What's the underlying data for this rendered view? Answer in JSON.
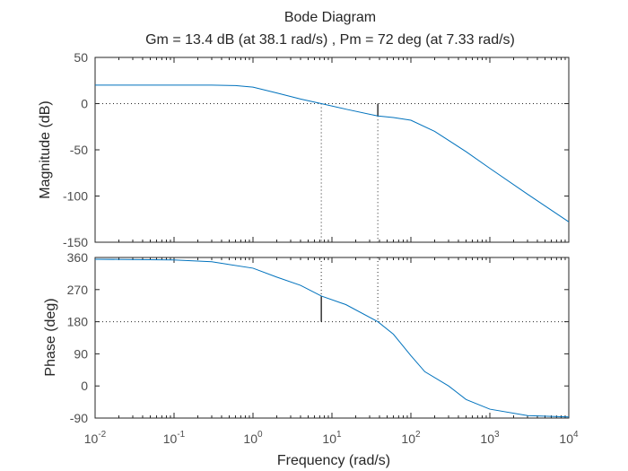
{
  "chart_data": {
    "type": "line",
    "title": "Bode Diagram",
    "subtitle": "Gm = 13.4 dB (at 38.1 rad/s) ,  Pm = 72 deg (at 7.33 rad/s)",
    "xlabel": "Frequency  (rad/s)",
    "xscale": "log",
    "xlim": [
      0.01,
      10000
    ],
    "x_ticks": [
      {
        "base": "10",
        "exp": "-2",
        "value": 0.01
      },
      {
        "base": "10",
        "exp": "-1",
        "value": 0.1
      },
      {
        "base": "10",
        "exp": "0",
        "value": 1
      },
      {
        "base": "10",
        "exp": "1",
        "value": 10
      },
      {
        "base": "10",
        "exp": "2",
        "value": 100
      },
      {
        "base": "10",
        "exp": "3",
        "value": 1000
      },
      {
        "base": "10",
        "exp": "4",
        "value": 10000
      }
    ],
    "line_color": "#0072bd",
    "magnitude": {
      "ylabel": "Magnitude (dB)",
      "ylim": [
        -150,
        50
      ],
      "ticks": [
        50,
        0,
        -50,
        -100,
        -150
      ],
      "x": [
        0.01,
        0.1,
        0.3,
        0.6,
        1,
        2,
        4,
        7.33,
        15,
        38.1,
        60,
        100,
        200,
        500,
        1000,
        3000,
        10000
      ],
      "y": [
        20,
        20,
        20,
        19.5,
        17.8,
        11.5,
        5,
        0,
        -6,
        -13.4,
        -15,
        -18,
        -30,
        -52,
        -70,
        -98,
        -128
      ]
    },
    "phase": {
      "ylabel": "Phase (deg)",
      "ylim": [
        -90,
        360
      ],
      "ticks": [
        360,
        270,
        180,
        90,
        0,
        -90
      ],
      "x": [
        0.01,
        0.1,
        0.3,
        1,
        2,
        4,
        7.33,
        15,
        38.1,
        60,
        100,
        150,
        300,
        500,
        1000,
        3000,
        10000
      ],
      "y": [
        355,
        353,
        348,
        330,
        305,
        282,
        252,
        228,
        180,
        145,
        85,
        40,
        0,
        -38,
        -65,
        -83,
        -87
      ]
    },
    "margins": {
      "gm_db": 13.4,
      "gm_freq": 38.1,
      "pm_deg": 72,
      "pm_freq": 7.33
    }
  }
}
